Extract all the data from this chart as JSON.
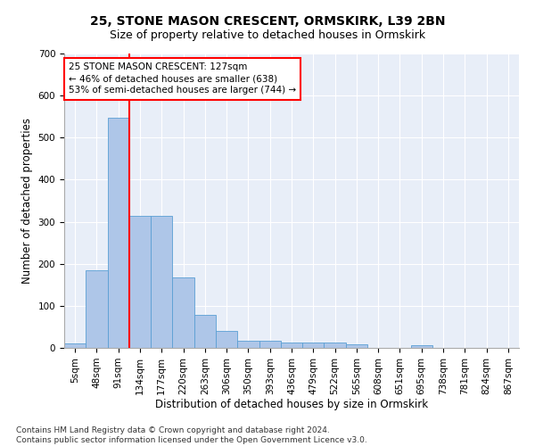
{
  "title1": "25, STONE MASON CRESCENT, ORMSKIRK, L39 2BN",
  "title2": "Size of property relative to detached houses in Ormskirk",
  "xlabel": "Distribution of detached houses by size in Ormskirk",
  "ylabel": "Number of detached properties",
  "footnote": "Contains HM Land Registry data © Crown copyright and database right 2024.\nContains public sector information licensed under the Open Government Licence v3.0.",
  "bin_labels": [
    "5sqm",
    "48sqm",
    "91sqm",
    "134sqm",
    "177sqm",
    "220sqm",
    "263sqm",
    "306sqm",
    "350sqm",
    "393sqm",
    "436sqm",
    "479sqm",
    "522sqm",
    "565sqm",
    "608sqm",
    "651sqm",
    "695sqm",
    "738sqm",
    "781sqm",
    "824sqm",
    "867sqm"
  ],
  "bar_values": [
    10,
    185,
    548,
    315,
    315,
    168,
    78,
    40,
    18,
    18,
    13,
    12,
    12,
    9,
    0,
    0,
    7,
    0,
    0,
    0,
    0
  ],
  "bar_color": "#aec6e8",
  "bar_edge_color": "#5a9fd4",
  "vline_x_index": 2.5,
  "vline_color": "red",
  "annotation_text": "25 STONE MASON CRESCENT: 127sqm\n← 46% of detached houses are smaller (638)\n53% of semi-detached houses are larger (744) →",
  "annotation_box_color": "white",
  "annotation_box_edgecolor": "red",
  "ylim": [
    0,
    700
  ],
  "yticks": [
    0,
    100,
    200,
    300,
    400,
    500,
    600,
    700
  ],
  "background_color": "#e8eef8",
  "grid_color": "white",
  "title1_fontsize": 10,
  "title2_fontsize": 9,
  "xlabel_fontsize": 8.5,
  "ylabel_fontsize": 8.5,
  "tick_fontsize": 7.5,
  "annotation_fontsize": 7.5,
  "footnote_fontsize": 6.5
}
